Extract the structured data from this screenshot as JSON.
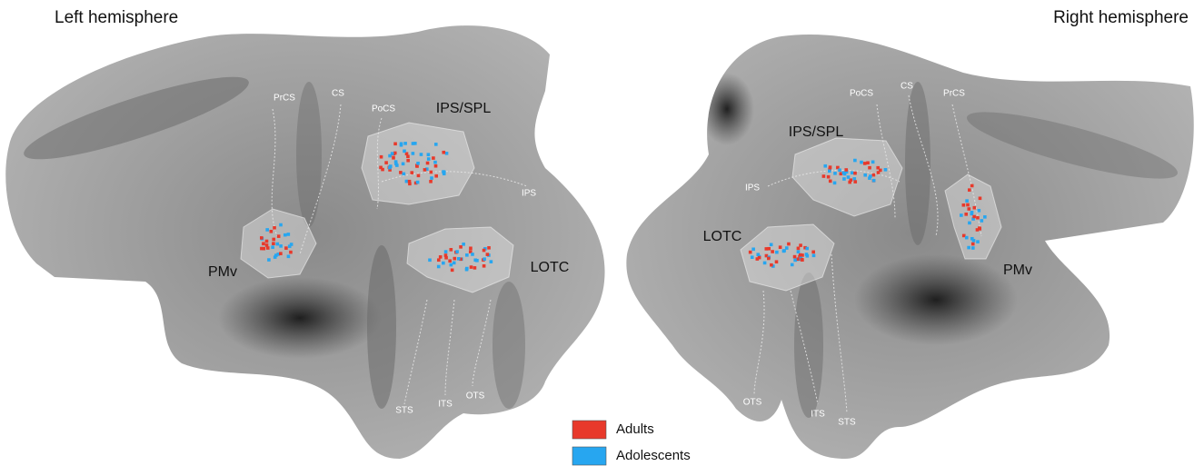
{
  "hemispheres": [
    {
      "title": "Left hemisphere",
      "regions": [
        "IPS/SPL",
        "PMv",
        "LOTC"
      ],
      "sulci": [
        "PrCS",
        "CS",
        "PoCS",
        "IPS",
        "STS",
        "ITS",
        "OTS"
      ]
    },
    {
      "title": "Right hemisphere",
      "regions": [
        "IPS/SPL",
        "LOTC",
        "PMv"
      ],
      "sulci": [
        "PoCS",
        "CS",
        "PrCS",
        "IPS",
        "OTS",
        "ITS",
        "STS"
      ]
    }
  ],
  "legend": [
    {
      "label": "Adults",
      "color": "#e8392b"
    },
    {
      "label": "Adolescents",
      "color": "#27a6f0"
    }
  ]
}
